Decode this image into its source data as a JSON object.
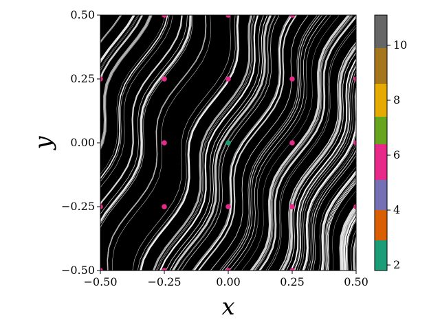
{
  "chart_data": {
    "type": "scatter",
    "title": "",
    "xlabel": "x",
    "ylabel": "y",
    "xlim": [
      -0.5,
      0.5
    ],
    "ylim": [
      -0.5,
      0.5
    ],
    "xticks": [
      -0.5,
      -0.25,
      0.0,
      0.25,
      0.5
    ],
    "xtick_labels": [
      "−0.50",
      "−0.25",
      "0.00",
      "0.25",
      "0.50"
    ],
    "yticks": [
      -0.5,
      -0.25,
      0.0,
      0.25,
      0.5
    ],
    "ytick_labels": [
      "−0.50",
      "−0.25",
      "0.00",
      "0.25",
      "0.50"
    ],
    "background": "#000000",
    "grid": false,
    "colorbar": {
      "range": [
        1.8,
        11.1
      ],
      "ticks": [
        2,
        4,
        6,
        8,
        10
      ],
      "tick_labels": [
        "2",
        "4",
        "6",
        "8",
        "10"
      ],
      "bands": [
        {
          "from": 1.8,
          "to": 2.9,
          "color": "#1b9e77"
        },
        {
          "from": 2.9,
          "to": 4.0,
          "color": "#d95f02"
        },
        {
          "from": 4.0,
          "to": 5.1,
          "color": "#7570b3"
        },
        {
          "from": 5.1,
          "to": 6.4,
          "color": "#e7298a"
        },
        {
          "from": 6.4,
          "to": 7.4,
          "color": "#66a61e"
        },
        {
          "from": 7.4,
          "to": 8.6,
          "color": "#e6ab02"
        },
        {
          "from": 8.6,
          "to": 9.9,
          "color": "#a6761d"
        },
        {
          "from": 9.9,
          "to": 11.1,
          "color": "#666666"
        }
      ]
    },
    "highlight_points": [
      {
        "x": -0.25,
        "y": 0.25,
        "value": 6
      },
      {
        "x": -0.25,
        "y": 0.0,
        "value": 6
      },
      {
        "x": -0.25,
        "y": -0.25,
        "value": 6
      },
      {
        "x": -0.25,
        "y": -0.5,
        "value": 6
      },
      {
        "x": -0.25,
        "y": 0.5,
        "value": 6
      },
      {
        "x": 0.0,
        "y": 0.25,
        "value": 6
      },
      {
        "x": 0.0,
        "y": -0.25,
        "value": 6
      },
      {
        "x": 0.0,
        "y": 0.5,
        "value": 6
      },
      {
        "x": 0.0,
        "y": -0.5,
        "value": 6
      },
      {
        "x": 0.25,
        "y": 0.25,
        "value": 6
      },
      {
        "x": 0.25,
        "y": 0.0,
        "value": 6
      },
      {
        "x": 0.25,
        "y": -0.25,
        "value": 6
      },
      {
        "x": 0.25,
        "y": 0.5,
        "value": 6
      },
      {
        "x": 0.25,
        "y": -0.5,
        "value": 6
      },
      {
        "x": -0.5,
        "y": 0.25,
        "value": 6
      },
      {
        "x": -0.5,
        "y": -0.25,
        "value": 6
      },
      {
        "x": -0.5,
        "y": -0.5,
        "value": 6
      },
      {
        "x": 0.5,
        "y": 0.25,
        "value": 6
      },
      {
        "x": 0.5,
        "y": 0.0,
        "value": 6
      },
      {
        "x": 0.5,
        "y": -0.25,
        "value": 6
      },
      {
        "x": 0.0,
        "y": 0.0,
        "value": 2
      }
    ]
  }
}
